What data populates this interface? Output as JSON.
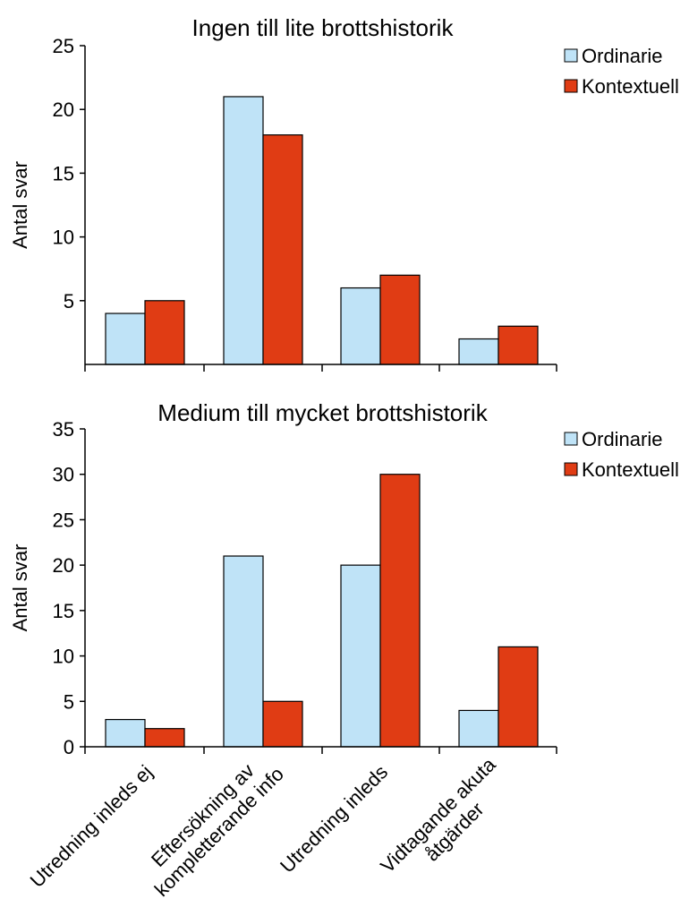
{
  "chart_data": [
    {
      "type": "bar",
      "title": "Ingen till lite brottshistorik",
      "ylabel": "Antal svar",
      "xlabel": "",
      "ylim": [
        0,
        25
      ],
      "yticks": [
        "5",
        "10",
        "15",
        "20",
        "25"
      ],
      "categories": [
        "Utredning inleds ej",
        "Eftersökning av kompletterande info",
        "Utredning inleds",
        "Vidtagande akuta åtgärder"
      ],
      "series": [
        {
          "name": "Ordinarie",
          "color": "#bfe3f7",
          "values": [
            4,
            21,
            6,
            2
          ]
        },
        {
          "name": "Kontextuell",
          "color": "#e03c14",
          "values": [
            5,
            18,
            7,
            3
          ]
        }
      ],
      "legend": "top-right"
    },
    {
      "type": "bar",
      "title": "Medium till mycket brottshistorik",
      "ylabel": "Antal svar",
      "xlabel": "",
      "ylim": [
        0,
        35
      ],
      "yticks": [
        "0",
        "5",
        "10",
        "15",
        "20",
        "25",
        "30",
        "35"
      ],
      "categories": [
        "Utredning inleds ej",
        "Eftersökning av kompletterande info",
        "Utredning inleds",
        "Vidtagande akuta åtgärder"
      ],
      "category_label_lines": [
        [
          "Utredning inleds ej"
        ],
        [
          "Eftersökning av",
          "kompletterande info"
        ],
        [
          "Utredning inleds"
        ],
        [
          "Vidtagande akuta",
          "åtgärder"
        ]
      ],
      "series": [
        {
          "name": "Ordinarie",
          "color": "#bfe3f7",
          "values": [
            3,
            21,
            20,
            4
          ]
        },
        {
          "name": "Kontextuell",
          "color": "#e03c14",
          "values": [
            2,
            5,
            30,
            11
          ]
        }
      ],
      "legend": "top-right"
    }
  ]
}
